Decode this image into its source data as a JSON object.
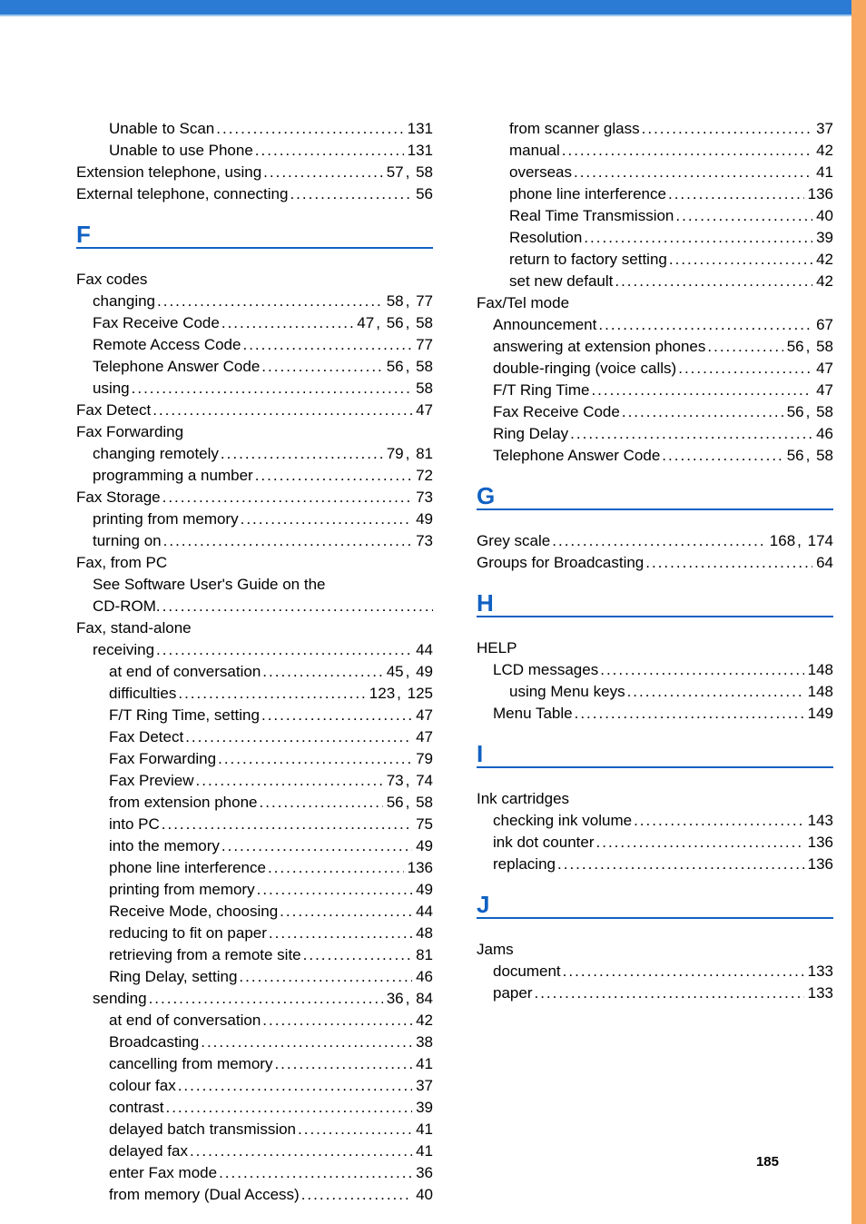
{
  "page_number": "185",
  "left_column": [
    {
      "type": "row",
      "indent": 2,
      "label": "Unable to Scan",
      "pages": [
        "131"
      ]
    },
    {
      "type": "row",
      "indent": 2,
      "label": "Unable to use Phone",
      "pages": [
        "131"
      ]
    },
    {
      "type": "row",
      "indent": 0,
      "label": "Extension telephone, using",
      "pages": [
        "57",
        "58"
      ]
    },
    {
      "type": "row",
      "indent": 0,
      "label": "External telephone, connecting",
      "pages": [
        "56"
      ]
    },
    {
      "type": "letter",
      "text": "F"
    },
    {
      "type": "row",
      "indent": 0,
      "label": "Fax codes",
      "pages": []
    },
    {
      "type": "row",
      "indent": 1,
      "label": "changing",
      "pages": [
        "58",
        "77"
      ]
    },
    {
      "type": "row",
      "indent": 1,
      "label": "Fax Receive Code",
      "pages": [
        "47",
        "56",
        "58"
      ]
    },
    {
      "type": "row",
      "indent": 1,
      "label": "Remote Access Code",
      "pages": [
        "77"
      ]
    },
    {
      "type": "row",
      "indent": 1,
      "label": "Telephone Answer Code",
      "pages": [
        "56",
        "58"
      ]
    },
    {
      "type": "row",
      "indent": 1,
      "label": "using",
      "pages": [
        "58"
      ]
    },
    {
      "type": "row",
      "indent": 0,
      "label": "Fax Detect",
      "pages": [
        "47"
      ]
    },
    {
      "type": "row",
      "indent": 0,
      "label": "Fax Forwarding",
      "pages": []
    },
    {
      "type": "row",
      "indent": 1,
      "label": "changing remotely",
      "pages": [
        "79",
        "81"
      ]
    },
    {
      "type": "row",
      "indent": 1,
      "label": "programming a number",
      "pages": [
        "72"
      ]
    },
    {
      "type": "row",
      "indent": 0,
      "label": "Fax Storage",
      "pages": [
        "73"
      ]
    },
    {
      "type": "row",
      "indent": 1,
      "label": "printing from memory",
      "pages": [
        "49"
      ]
    },
    {
      "type": "row",
      "indent": 1,
      "label": "turning on",
      "pages": [
        "73"
      ]
    },
    {
      "type": "row",
      "indent": 0,
      "label": "Fax, from PC",
      "pages": []
    },
    {
      "type": "row",
      "indent": 1,
      "label": "See Software User's Guide on the",
      "pages": []
    },
    {
      "type": "row",
      "indent": 1,
      "label": "CD-ROM.",
      "trail_dots": true,
      "pages": []
    },
    {
      "type": "row",
      "indent": 0,
      "label": "Fax, stand-alone",
      "pages": []
    },
    {
      "type": "row",
      "indent": 1,
      "label": "receiving",
      "pages": [
        "44"
      ]
    },
    {
      "type": "row",
      "indent": 2,
      "label": "at end of conversation",
      "pages": [
        "45",
        "49"
      ]
    },
    {
      "type": "row",
      "indent": 2,
      "label": "difficulties",
      "pages": [
        "123",
        "125"
      ]
    },
    {
      "type": "row",
      "indent": 2,
      "label": "F/T Ring Time, setting",
      "pages": [
        "47"
      ]
    },
    {
      "type": "row",
      "indent": 2,
      "label": "Fax Detect",
      "pages": [
        "47"
      ]
    },
    {
      "type": "row",
      "indent": 2,
      "label": "Fax Forwarding",
      "pages": [
        "79"
      ]
    },
    {
      "type": "row",
      "indent": 2,
      "label": "Fax Preview",
      "pages": [
        "73",
        "74"
      ]
    },
    {
      "type": "row",
      "indent": 2,
      "label": "from extension phone",
      "pages": [
        "56",
        "58"
      ]
    },
    {
      "type": "row",
      "indent": 2,
      "label": "into PC",
      "pages": [
        "75"
      ]
    },
    {
      "type": "row",
      "indent": 2,
      "label": "into the memory",
      "pages": [
        "49"
      ]
    },
    {
      "type": "row",
      "indent": 2,
      "label": "phone line interference",
      "pages": [
        "136"
      ]
    },
    {
      "type": "row",
      "indent": 2,
      "label": "printing from memory",
      "pages": [
        "49"
      ]
    },
    {
      "type": "row",
      "indent": 2,
      "label": "Receive Mode, choosing",
      "pages": [
        "44"
      ]
    },
    {
      "type": "row",
      "indent": 2,
      "label": "reducing to fit on paper",
      "pages": [
        "48"
      ]
    },
    {
      "type": "row",
      "indent": 2,
      "label": "retrieving from a remote site",
      "pages": [
        "81"
      ]
    },
    {
      "type": "row",
      "indent": 2,
      "label": "Ring Delay, setting",
      "pages": [
        "46"
      ]
    },
    {
      "type": "row",
      "indent": 1,
      "label": "sending",
      "pages": [
        "36",
        "84"
      ]
    },
    {
      "type": "row",
      "indent": 2,
      "label": "at end of conversation",
      "pages": [
        "42"
      ]
    },
    {
      "type": "row",
      "indent": 2,
      "label": "Broadcasting",
      "pages": [
        "38"
      ]
    },
    {
      "type": "row",
      "indent": 2,
      "label": "cancelling from memory",
      "pages": [
        "41"
      ]
    },
    {
      "type": "row",
      "indent": 2,
      "label": "colour fax",
      "pages": [
        "37"
      ]
    },
    {
      "type": "row",
      "indent": 2,
      "label": "contrast",
      "pages": [
        "39"
      ]
    },
    {
      "type": "row",
      "indent": 2,
      "label": "delayed batch transmission",
      "pages": [
        "41"
      ]
    },
    {
      "type": "row",
      "indent": 2,
      "label": "delayed fax",
      "pages": [
        "41"
      ]
    },
    {
      "type": "row",
      "indent": 2,
      "label": "enter Fax mode",
      "pages": [
        "36"
      ]
    },
    {
      "type": "row",
      "indent": 2,
      "label": "from memory (Dual Access)",
      "pages": [
        "40"
      ]
    }
  ],
  "right_column": [
    {
      "type": "row",
      "indent": 2,
      "label": "from scanner glass",
      "pages": [
        "37"
      ]
    },
    {
      "type": "row",
      "indent": 2,
      "label": "manual",
      "pages": [
        "42"
      ]
    },
    {
      "type": "row",
      "indent": 2,
      "label": "overseas",
      "pages": [
        "41"
      ]
    },
    {
      "type": "row",
      "indent": 2,
      "label": "phone line interference",
      "pages": [
        "136"
      ]
    },
    {
      "type": "row",
      "indent": 2,
      "label": "Real Time Transmission",
      "pages": [
        "40"
      ]
    },
    {
      "type": "row",
      "indent": 2,
      "label": "Resolution",
      "pages": [
        "39"
      ]
    },
    {
      "type": "row",
      "indent": 2,
      "label": "return to factory setting",
      "pages": [
        "42"
      ]
    },
    {
      "type": "row",
      "indent": 2,
      "label": "set new default",
      "pages": [
        "42"
      ]
    },
    {
      "type": "row",
      "indent": 0,
      "label": "Fax/Tel mode",
      "pages": []
    },
    {
      "type": "row",
      "indent": 1,
      "label": "Announcement",
      "pages": [
        "67"
      ]
    },
    {
      "type": "row",
      "indent": 1,
      "label": "answering at extension phones",
      "pages": [
        "56",
        "58"
      ]
    },
    {
      "type": "row",
      "indent": 1,
      "label": "double-ringing (voice calls)",
      "pages": [
        "47"
      ]
    },
    {
      "type": "row",
      "indent": 1,
      "label": "F/T Ring Time",
      "pages": [
        "47"
      ]
    },
    {
      "type": "row",
      "indent": 1,
      "label": "Fax Receive Code",
      "pages": [
        "56",
        "58"
      ]
    },
    {
      "type": "row",
      "indent": 1,
      "label": "Ring Delay",
      "pages": [
        "46"
      ]
    },
    {
      "type": "row",
      "indent": 1,
      "label": "Telephone Answer Code",
      "pages": [
        "56",
        "58"
      ]
    },
    {
      "type": "letter",
      "text": "G"
    },
    {
      "type": "row",
      "indent": 0,
      "label": "Grey scale",
      "pages": [
        "168",
        "174"
      ]
    },
    {
      "type": "row",
      "indent": 0,
      "label": "Groups for Broadcasting",
      "pages": [
        "64"
      ]
    },
    {
      "type": "letter",
      "text": "H"
    },
    {
      "type": "row",
      "indent": 0,
      "label": "HELP",
      "pages": []
    },
    {
      "type": "row",
      "indent": 1,
      "label": "LCD messages",
      "pages": [
        "148"
      ]
    },
    {
      "type": "row",
      "indent": 2,
      "label": "using Menu keys",
      "pages": [
        "148"
      ]
    },
    {
      "type": "row",
      "indent": 1,
      "label": "Menu Table",
      "pages": [
        "149"
      ]
    },
    {
      "type": "letter",
      "text": "I"
    },
    {
      "type": "row",
      "indent": 0,
      "label": "Ink cartridges",
      "pages": []
    },
    {
      "type": "row",
      "indent": 1,
      "label": "checking ink volume",
      "pages": [
        "143"
      ]
    },
    {
      "type": "row",
      "indent": 1,
      "label": "ink dot counter",
      "pages": [
        "136"
      ]
    },
    {
      "type": "row",
      "indent": 1,
      "label": "replacing",
      "pages": [
        "136"
      ]
    },
    {
      "type": "letter",
      "text": "J"
    },
    {
      "type": "row",
      "indent": 0,
      "label": "Jams",
      "pages": []
    },
    {
      "type": "row",
      "indent": 1,
      "label": "document",
      "pages": [
        "133"
      ]
    },
    {
      "type": "row",
      "indent": 1,
      "label": "paper",
      "pages": [
        "133"
      ]
    }
  ]
}
